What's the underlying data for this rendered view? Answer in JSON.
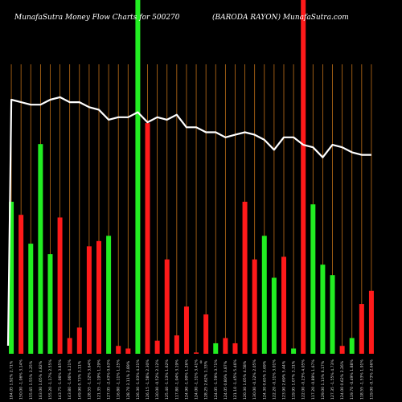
{
  "chart_data": {
    "type": "bar",
    "title_left": "MunafaSutra  Money Flow  Charts for 500270",
    "title_right": "(BARODA RAYON) MunafaSutra.com",
    "center_marker": "0",
    "grid": true,
    "ylim": [
      0,
      100
    ],
    "colors": {
      "background": "#000000",
      "up": "#22ee22",
      "down": "#ff1a1a",
      "gridline": "#c07018",
      "line": "#ffffff"
    },
    "categories": [
      "184.05 1.92% 2.71%",
      "150.00 -1.06% 3.14%",
      "155.65 1.55% 3.25%",
      "163.00 1.05% 4.82%",
      "155.20 -1.17% 2.55%",
      "143.75 -1.06% 3.85%",
      "143.80 -1.06% 4.21%",
      "149.90 0.73% 3.11%",
      "128.55 -1.32% 3.64%",
      "121.35 -1.19% 1.29%",
      "127.05 -2.43% 0.63%",
      "116.80 -1.11% 1.25%",
      "128.70 3.11% 2.89%",
      "126.30 -1.03% 4.21%",
      "126.15 -1.58% 2.30%",
      "130.00 -0.52% 2.12%",
      "125.40 -1.13% 1.62%",
      "117.80 -1.04% 3.19%",
      "124.90 -1.00% 1.26%",
      "124.00 -1.31% 3.41%",
      "128.25 2.62% 1.33%",
      "124.05 -1.59% 3.71%",
      "124.05 0.80% 3.87%",
      "121.10 -1.45% 5.46%",
      "120.30 1.05% 4.58%",
      "130.00 -0.32% 2.05%",
      "124.30 0.65% 3.69%",
      "122.20 -0.31% 3.01%",
      "123.90 2.69% 5.44%",
      "119.95 1.07% 3.31%",
      "122.00 -0.23% 4.05%",
      "117.20 -0.89% 1.67%",
      "129.00 1.13% 6.17%",
      "127.35 -1.55% 4.73%",
      "124.00 0.62% 2.26%",
      "119.70 -0.49% 1.88%",
      "118.55 -1.53% 1.91%",
      "119.00 -0.73% 2.66%"
    ],
    "values": [
      58,
      53,
      42,
      80,
      38,
      52,
      6,
      10,
      41,
      43,
      45,
      3,
      2,
      100,
      88,
      5,
      36,
      7,
      18,
      0.5,
      15,
      4,
      6,
      4,
      58,
      36,
      45,
      29,
      37,
      2,
      100,
      57,
      34,
      30,
      3,
      6,
      19,
      24
    ],
    "directions": [
      "up",
      "down",
      "up",
      "up",
      "up",
      "down",
      "down",
      "down",
      "down",
      "down",
      "up",
      "down",
      "down",
      "up",
      "down",
      "down",
      "down",
      "down",
      "down",
      "down",
      "down",
      "up",
      "down",
      "down",
      "down",
      "down",
      "up",
      "up",
      "down",
      "up",
      "down",
      "up",
      "up",
      "up",
      "down",
      "up",
      "down",
      "down"
    ],
    "line": [
      90,
      89,
      88,
      88,
      90,
      91,
      89,
      89,
      87,
      86,
      82,
      83,
      83,
      85,
      81,
      83,
      82,
      84,
      79,
      79,
      77,
      77,
      75,
      76,
      77,
      76,
      74,
      70,
      75,
      75,
      72,
      71,
      67,
      72,
      71,
      69,
      68,
      68
    ]
  }
}
